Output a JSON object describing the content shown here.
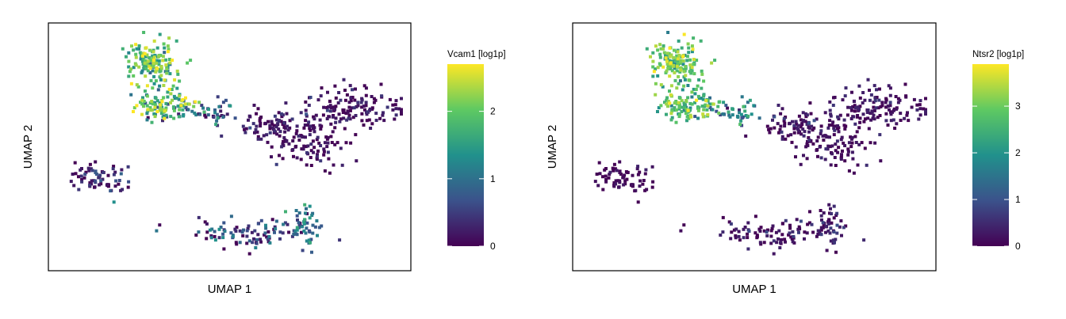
{
  "chart_data": [
    {
      "type": "scatter",
      "title": "",
      "xlabel": "UMAP 1",
      "ylabel": "UMAP 2",
      "color_scale": "viridis",
      "colors": [
        "#440154",
        "#3b528b",
        "#21918c",
        "#5ec962",
        "#fde725"
      ],
      "legend_title": "Vcam1 [log1p]",
      "legend_ticks": [
        "0",
        "1",
        "2"
      ],
      "color_range": [
        0,
        2.7
      ],
      "legend_position": "right",
      "clusters": [
        {
          "cx": 0.28,
          "cy": 0.87,
          "sx": 0.035,
          "sy": 0.05,
          "n": 150,
          "mean": 1.9,
          "sd": 0.5
        },
        {
          "cx": 0.31,
          "cy": 0.68,
          "sx": 0.045,
          "sy": 0.035,
          "n": 120,
          "mean": 1.7,
          "sd": 0.6
        },
        {
          "cx": 0.45,
          "cy": 0.65,
          "sx": 0.035,
          "sy": 0.025,
          "n": 40,
          "mean": 0.8,
          "sd": 0.5
        },
        {
          "cx": 0.62,
          "cy": 0.6,
          "sx": 0.04,
          "sy": 0.04,
          "n": 70,
          "mean": 0.15,
          "sd": 0.25
        },
        {
          "cx": 0.72,
          "cy": 0.52,
          "sx": 0.05,
          "sy": 0.06,
          "n": 110,
          "mean": 0.1,
          "sd": 0.2
        },
        {
          "cx": 0.86,
          "cy": 0.68,
          "sx": 0.07,
          "sy": 0.04,
          "n": 130,
          "mean": 0.1,
          "sd": 0.2
        },
        {
          "cx": 0.12,
          "cy": 0.37,
          "sx": 0.05,
          "sy": 0.04,
          "n": 70,
          "mean": 0.3,
          "sd": 0.35
        },
        {
          "cx": 0.55,
          "cy": 0.12,
          "sx": 0.08,
          "sy": 0.03,
          "n": 90,
          "mean": 0.5,
          "sd": 0.5
        },
        {
          "cx": 0.72,
          "cy": 0.16,
          "sx": 0.025,
          "sy": 0.04,
          "n": 50,
          "mean": 1.0,
          "sd": 0.5
        }
      ]
    },
    {
      "type": "scatter",
      "title": "",
      "xlabel": "UMAP 1",
      "ylabel": "UMAP 2",
      "color_scale": "viridis",
      "colors": [
        "#440154",
        "#3b528b",
        "#21918c",
        "#5ec962",
        "#fde725"
      ],
      "legend_title": "Ntsr2 [log1p]",
      "legend_ticks": [
        "0",
        "1",
        "2",
        "3"
      ],
      "color_range": [
        0,
        3.9
      ],
      "legend_position": "right",
      "clusters": [
        {
          "cx": 0.28,
          "cy": 0.87,
          "sx": 0.035,
          "sy": 0.05,
          "n": 150,
          "mean": 2.8,
          "sd": 0.6
        },
        {
          "cx": 0.31,
          "cy": 0.68,
          "sx": 0.045,
          "sy": 0.035,
          "n": 120,
          "mean": 2.6,
          "sd": 0.6
        },
        {
          "cx": 0.45,
          "cy": 0.65,
          "sx": 0.035,
          "sy": 0.025,
          "n": 40,
          "mean": 1.6,
          "sd": 0.6
        },
        {
          "cx": 0.62,
          "cy": 0.6,
          "sx": 0.04,
          "sy": 0.04,
          "n": 70,
          "mean": 0.2,
          "sd": 0.3
        },
        {
          "cx": 0.72,
          "cy": 0.52,
          "sx": 0.05,
          "sy": 0.06,
          "n": 110,
          "mean": 0.1,
          "sd": 0.2
        },
        {
          "cx": 0.86,
          "cy": 0.68,
          "sx": 0.07,
          "sy": 0.04,
          "n": 130,
          "mean": 0.15,
          "sd": 0.25
        },
        {
          "cx": 0.12,
          "cy": 0.37,
          "sx": 0.05,
          "sy": 0.04,
          "n": 70,
          "mean": 0.05,
          "sd": 0.15
        },
        {
          "cx": 0.55,
          "cy": 0.12,
          "sx": 0.08,
          "sy": 0.03,
          "n": 90,
          "mean": 0.15,
          "sd": 0.3
        },
        {
          "cx": 0.72,
          "cy": 0.16,
          "sx": 0.025,
          "sy": 0.04,
          "n": 50,
          "mean": 0.3,
          "sd": 0.35
        }
      ]
    }
  ]
}
